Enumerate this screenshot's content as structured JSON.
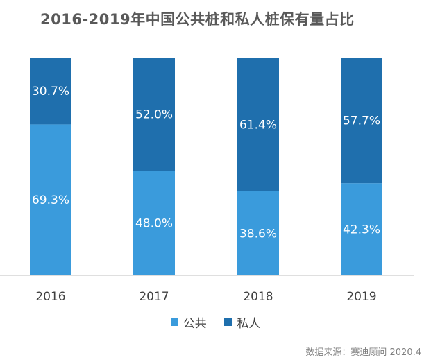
{
  "title": "2016-2019年中国公共桩和私人桩保有量占比",
  "source": "数据来源：赛迪顾问 2020.4",
  "colors": {
    "public": "#3a9bdc",
    "private": "#1f6fad",
    "axis": "#bfbfbf",
    "tick_text": "#404040"
  },
  "chart_data": {
    "type": "bar",
    "stacked": true,
    "title": "2016-2019年中国公共桩和私人桩保有量占比",
    "categories": [
      "2016",
      "2017",
      "2018",
      "2019"
    ],
    "series": [
      {
        "name": "公共",
        "values": [
          69.3,
          48.0,
          38.6,
          42.3
        ],
        "labels": [
          "69.3%",
          "48.0%",
          "38.6%",
          "42.3%"
        ]
      },
      {
        "name": "私人",
        "values": [
          30.7,
          52.0,
          61.4,
          57.7
        ],
        "labels": [
          "30.7%",
          "52.0%",
          "61.4%",
          "57.7%"
        ]
      }
    ],
    "ylim": [
      0,
      100
    ],
    "legend_position": "bottom",
    "grid": false
  }
}
